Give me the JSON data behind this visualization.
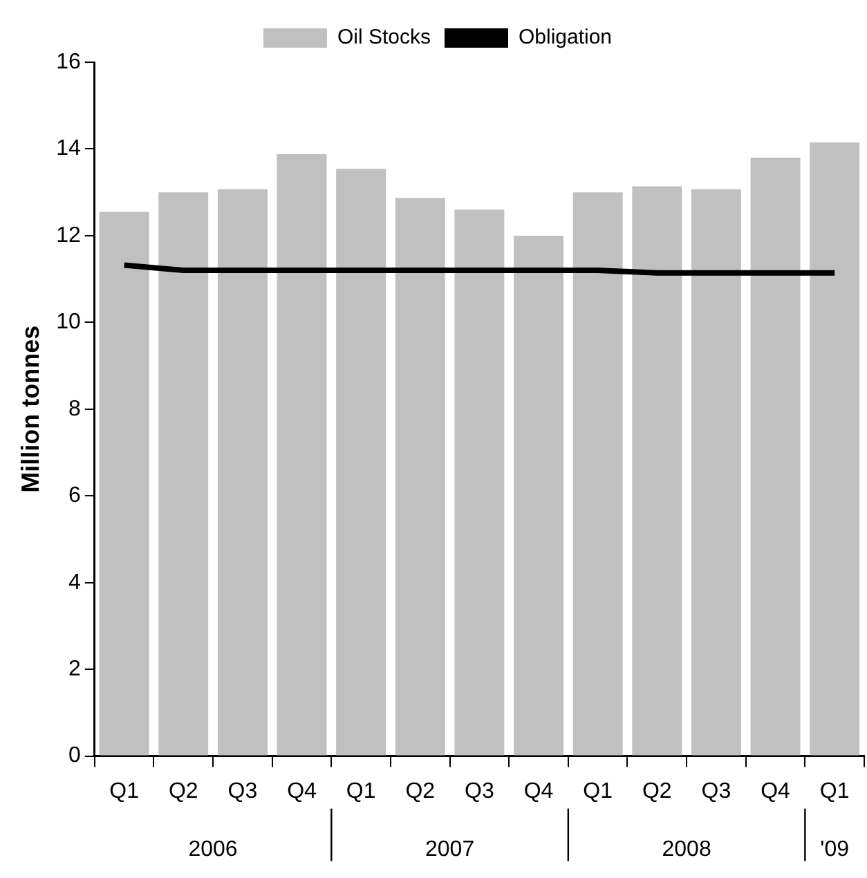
{
  "chart_data": {
    "type": "bar",
    "ylabel": "Million tonnes",
    "categories": [
      "Q1",
      "Q2",
      "Q3",
      "Q4",
      "Q1",
      "Q2",
      "Q3",
      "Q4",
      "Q1",
      "Q2",
      "Q3",
      "Q4",
      "Q1"
    ],
    "series": [
      {
        "name": "Oil Stocks",
        "color": "#c0c0c0",
        "values": [
          12.55,
          13.0,
          13.07,
          13.88,
          13.54,
          12.87,
          12.6,
          12.0,
          13.0,
          13.14,
          13.07,
          13.8,
          14.15
        ]
      },
      {
        "name": "Obligation",
        "type": "line",
        "color": "#000000",
        "values": [
          11.32,
          11.2,
          11.2,
          11.2,
          11.2,
          11.2,
          11.2,
          11.2,
          11.2,
          11.14,
          11.14,
          11.14,
          11.14
        ]
      }
    ],
    "annotations": [
      "2006",
      "2007",
      "2008",
      "'09"
    ],
    "ylim": [
      0,
      16
    ],
    "yticks": [
      0,
      2,
      4,
      6,
      8,
      10,
      12,
      14,
      16
    ],
    "grid": false,
    "legend": "top",
    "marker": "none",
    "line_style": "solid"
  }
}
